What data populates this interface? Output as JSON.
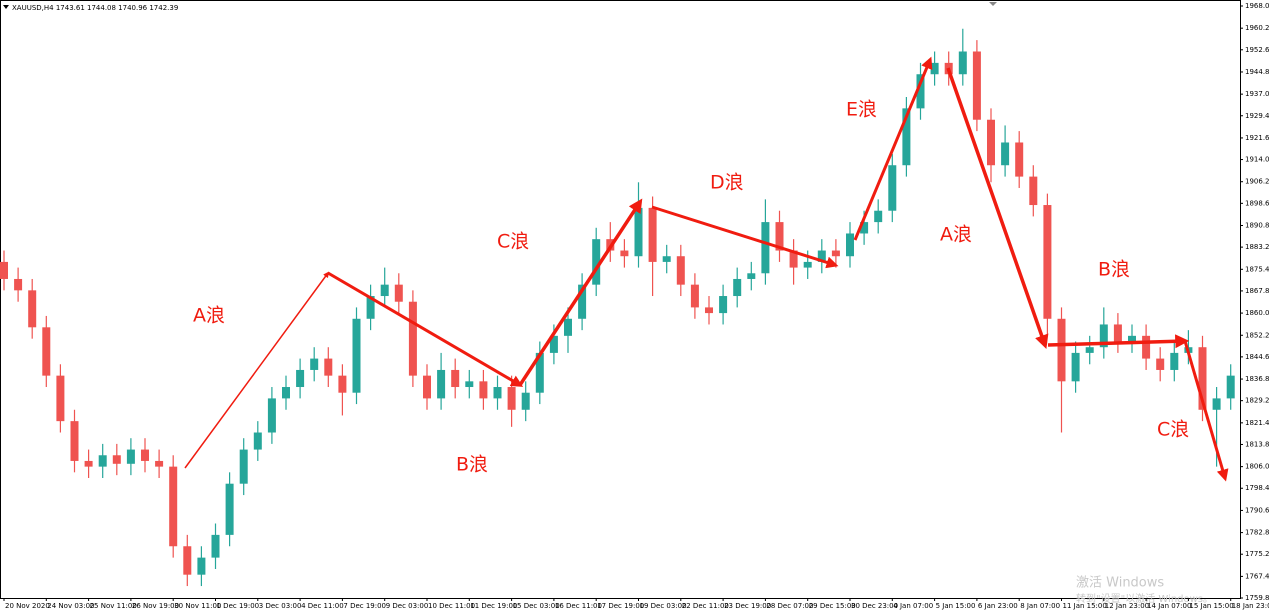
{
  "chart_data": {
    "type": "candlestick",
    "title": "XAUUSD,H4  1743.61 1744.08 1740.96 1742.39",
    "categories": [
      "20 Nov 2020",
      null,
      null,
      "24 Nov 03:00",
      null,
      null,
      "25 Nov 11:00",
      null,
      null,
      "26 Nov 19:00",
      null,
      null,
      "30 Nov 11:00",
      null,
      null,
      "1 Dec 19:00",
      null,
      null,
      "3 Dec 03:00",
      null,
      null,
      "4 Dec 11:00",
      null,
      null,
      "7 Dec 19:00",
      null,
      null,
      "9 Dec 03:00",
      null,
      null,
      "10 Dec 11:00",
      null,
      null,
      "11 Dec 19:00",
      null,
      null,
      "15 Dec 03:00",
      null,
      null,
      "16 Dec 11:00",
      null,
      null,
      "17 Dec 19:00",
      null,
      null,
      "19 Dec 03:00",
      null,
      null,
      "22 Dec 11:00",
      null,
      null,
      "23 Dec 19:00",
      null,
      null,
      "28 Dec 07:00",
      null,
      null,
      "29 Dec 15:00",
      null,
      null,
      "30 Dec 23:00",
      null,
      null,
      "4 Jan 07:00",
      null,
      null,
      "5 Jan 15:00",
      null,
      null,
      "6 Jan 23:00",
      null,
      null,
      "8 Jan 07:00",
      null,
      null,
      "11 Jan 15:00",
      null,
      null,
      "12 Jan 23:00",
      null,
      null,
      "14 Jan 07:00",
      null,
      null,
      "15 Jan 15:00",
      null,
      null,
      "18 Jan 23:00"
    ],
    "open": [
      1878,
      1872,
      1868,
      1855,
      1838,
      1822,
      1808,
      1806,
      1810,
      1807,
      1812,
      1808,
      1806,
      1778,
      1768,
      1774,
      1782,
      1800,
      1812,
      1818,
      1830,
      1834,
      1840,
      1844,
      1838,
      1832,
      1858,
      1866,
      1870,
      1864,
      1838,
      1830,
      1840,
      1834,
      1836,
      1830,
      1834,
      1826,
      1832,
      1846,
      1852,
      1858,
      1870,
      1886,
      1882,
      1880,
      1897,
      1878,
      1880,
      1870,
      1862,
      1860,
      1866,
      1872,
      1874,
      1892,
      1882,
      1876,
      1878,
      1882,
      1880,
      1888,
      1892,
      1896,
      1912,
      1932,
      1944,
      1948,
      1944,
      1952,
      1928,
      1912,
      1920,
      1908,
      1898,
      1858,
      1836,
      1846,
      1848,
      1856,
      1850,
      1852,
      1844,
      1840,
      1846,
      1848,
      1826,
      1830
    ],
    "high": [
      1882,
      1876,
      1872,
      1859,
      1842,
      1826,
      1812,
      1814,
      1814,
      1816,
      1816,
      1812,
      1810,
      1782,
      1778,
      1786,
      1804,
      1816,
      1822,
      1834,
      1838,
      1844,
      1848,
      1848,
      1842,
      1862,
      1870,
      1876,
      1874,
      1868,
      1842,
      1846,
      1844,
      1840,
      1840,
      1838,
      1838,
      1836,
      1850,
      1856,
      1862,
      1874,
      1890,
      1892,
      1886,
      1906,
      1901,
      1884,
      1884,
      1874,
      1866,
      1870,
      1876,
      1878,
      1900,
      1896,
      1886,
      1882,
      1886,
      1886,
      1892,
      1896,
      1900,
      1916,
      1936,
      1948,
      1952,
      1952,
      1960,
      1956,
      1932,
      1926,
      1924,
      1912,
      1902,
      1862,
      1850,
      1852,
      1862,
      1860,
      1856,
      1856,
      1848,
      1850,
      1854,
      1852,
      1834,
      1842
    ],
    "low": [
      1868,
      1864,
      1851,
      1834,
      1818,
      1804,
      1802,
      1802,
      1803,
      1803,
      1804,
      1802,
      1774,
      1764,
      1764,
      1770,
      1778,
      1796,
      1808,
      1814,
      1826,
      1830,
      1836,
      1834,
      1824,
      1828,
      1854,
      1862,
      1860,
      1834,
      1826,
      1826,
      1830,
      1830,
      1826,
      1826,
      1820,
      1822,
      1828,
      1842,
      1846,
      1854,
      1866,
      1878,
      1876,
      1876,
      1866,
      1874,
      1866,
      1858,
      1856,
      1856,
      1862,
      1868,
      1870,
      1878,
      1870,
      1872,
      1874,
      1876,
      1876,
      1884,
      1888,
      1892,
      1908,
      1928,
      1940,
      1940,
      1940,
      1924,
      1906,
      1908,
      1904,
      1894,
      1852,
      1818,
      1832,
      1842,
      1844,
      1846,
      1846,
      1840,
      1836,
      1836,
      1842,
      1822,
      1806,
      1826
    ],
    "close": [
      1872,
      1868,
      1855,
      1838,
      1822,
      1808,
      1806,
      1810,
      1807,
      1812,
      1808,
      1806,
      1778,
      1768,
      1774,
      1782,
      1800,
      1812,
      1818,
      1830,
      1834,
      1840,
      1844,
      1838,
      1832,
      1858,
      1866,
      1870,
      1864,
      1838,
      1830,
      1840,
      1834,
      1836,
      1830,
      1834,
      1826,
      1832,
      1846,
      1852,
      1858,
      1870,
      1886,
      1882,
      1880,
      1897,
      1878,
      1880,
      1870,
      1862,
      1860,
      1866,
      1872,
      1874,
      1892,
      1882,
      1876,
      1878,
      1882,
      1880,
      1888,
      1892,
      1896,
      1912,
      1932,
      1944,
      1948,
      1944,
      1952,
      1928,
      1912,
      1920,
      1908,
      1898,
      1858,
      1836,
      1846,
      1848,
      1856,
      1850,
      1852,
      1844,
      1840,
      1846,
      1848,
      1826,
      1830,
      1838
    ],
    "up_color": "#26a69a",
    "down_color": "#ef5350",
    "ylim": [
      1759.8,
      1968
    ],
    "yticks": [
      {
        "value": 1968,
        "label": "1968.00"
      },
      {
        "value": 1960.2,
        "label": "1960.20"
      },
      {
        "value": 1952.6,
        "label": "1952.60"
      },
      {
        "value": 1944.8,
        "label": "1944.80"
      },
      {
        "value": 1937,
        "label": "1937.00"
      },
      {
        "value": 1929.4,
        "label": "1929.40"
      },
      {
        "value": 1921.6,
        "label": "1921.60"
      },
      {
        "value": 1914,
        "label": "1914.00"
      },
      {
        "value": 1906.2,
        "label": "1906.20"
      },
      {
        "value": 1898.6,
        "label": "1898.60"
      },
      {
        "value": 1890.8,
        "label": "1890.80"
      },
      {
        "value": 1883.2,
        "label": "1883.20"
      },
      {
        "value": 1875.4,
        "label": "1875.40"
      },
      {
        "value": 1867.8,
        "label": "1867.80"
      },
      {
        "value": 1860,
        "label": "1860.00"
      },
      {
        "value": 1852.2,
        "label": "1852.20"
      },
      {
        "value": 1844.6,
        "label": "1844.60"
      },
      {
        "value": 1836.8,
        "label": "1836.80"
      },
      {
        "value": 1829.2,
        "label": "1829.20"
      },
      {
        "value": 1821.4,
        "label": "1821.40"
      },
      {
        "value": 1813.8,
        "label": "1813.80"
      },
      {
        "value": 1806,
        "label": "1806.00"
      },
      {
        "value": 1798.4,
        "label": "1798.40"
      },
      {
        "value": 1790.6,
        "label": "1790.60"
      },
      {
        "value": 1782.8,
        "label": "1782.80"
      },
      {
        "value": 1775.2,
        "label": "1775.20"
      },
      {
        "value": 1767.4,
        "label": "1767.40"
      },
      {
        "value": 1759.8,
        "label": "1759.80"
      }
    ],
    "grid": false,
    "annotations": [
      "A浪",
      "B浪",
      "C浪",
      "D浪",
      "E浪",
      "A浪",
      "B浪",
      "C浪"
    ],
    "annotation_color": "#f01c10",
    "watermark": [
      "激活 Windows",
      "转到\"设置\"以激活 Windows。"
    ]
  }
}
